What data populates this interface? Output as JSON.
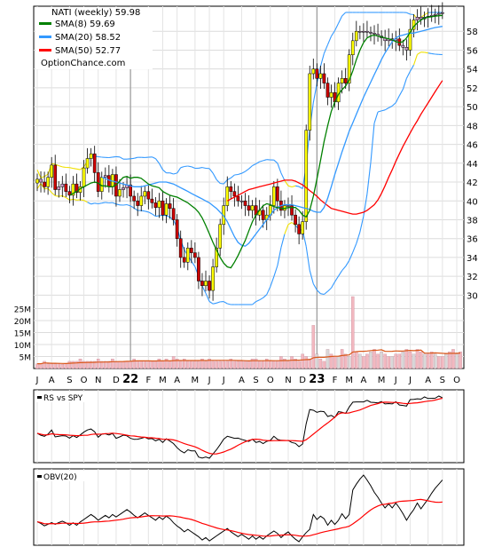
{
  "chart_data": {
    "type": "line",
    "title": "NATI (weekly) 59.98",
    "website": "OptionChance.com",
    "legend_placement": "top-left",
    "colors": {
      "up_candle": "#ffff00",
      "down_candle": "#cc0000",
      "neutral_candle": "#cc99cc",
      "sma8": "#008000",
      "sma20": "#3399ff",
      "sma50": "#ff0000",
      "bollinger_upper_normal": "#3399ff",
      "bollinger_squeeze": "#f0e000",
      "volume_bar": "#f2b8c0",
      "volume_ma": "#d9581a",
      "rs_line": "#000000",
      "rs_ma": "#ff0000",
      "obv_line": "#000000",
      "obv_ma": "#ff0000"
    },
    "legend": [
      {
        "label": "NATI (weekly) 59.98",
        "color": "#000000"
      },
      {
        "label": "SMA(8) 59.69",
        "color": "#008000"
      },
      {
        "label": "SMA(20) 58.52",
        "color": "#3399ff"
      },
      {
        "label": "SMA(50) 52.77",
        "color": "#ff0000"
      }
    ],
    "price_axis": {
      "ticks": [
        "58",
        "56",
        "54",
        "52",
        "50",
        "48",
        "46",
        "44",
        "42",
        "40",
        "38",
        "36",
        "34",
        "32",
        "30"
      ],
      "ylim": [
        29,
        60
      ],
      "grid": true
    },
    "volume_axis": {
      "ticks": [
        "25M",
        "20M",
        "15M",
        "10M",
        "5M"
      ],
      "ylim": [
        0,
        30
      ],
      "grid": true
    },
    "x_axis": {
      "ticks": [
        {
          "label": "J",
          "week": 0
        },
        {
          "label": "A",
          "week": 4
        },
        {
          "label": "S",
          "week": 9
        },
        {
          "label": "O",
          "week": 13
        },
        {
          "label": "N",
          "week": 17
        },
        {
          "label": "D",
          "week": 22
        },
        {
          "label": "22",
          "week": 26,
          "bold": true
        },
        {
          "label": "F",
          "week": 31
        },
        {
          "label": "M",
          "week": 35
        },
        {
          "label": "A",
          "week": 39
        },
        {
          "label": "M",
          "week": 44
        },
        {
          "label": "J",
          "week": 48
        },
        {
          "label": "J",
          "week": 52
        },
        {
          "label": "A",
          "week": 57
        },
        {
          "label": "S",
          "week": 61
        },
        {
          "label": "O",
          "week": 65
        },
        {
          "label": "N",
          "week": 70
        },
        {
          "label": "D",
          "week": 74
        },
        {
          "label": "23",
          "week": 78,
          "bold": true
        },
        {
          "label": "F",
          "week": 83
        },
        {
          "label": "M",
          "week": 87
        },
        {
          "label": "A",
          "week": 91
        },
        {
          "label": "M",
          "week": 96
        },
        {
          "label": "J",
          "week": 100
        },
        {
          "label": "J",
          "week": 104
        },
        {
          "label": "A",
          "week": 109
        },
        {
          "label": "S",
          "week": 113
        },
        {
          "label": "O",
          "week": 117
        }
      ]
    },
    "year_lines": [
      26,
      78
    ],
    "close": [
      42.3,
      42.0,
      41.5,
      42.5,
      43.8,
      41.2,
      41.5,
      41.8,
      41.0,
      40.6,
      41.8,
      40.9,
      41.5,
      43.5,
      44.5,
      45.0,
      43.0,
      41.0,
      42.5,
      42.7,
      41.5,
      42.8,
      40.5,
      41.2,
      41.4,
      41.7,
      40.5,
      40.0,
      39.5,
      40.5,
      41.0,
      40.2,
      39.8,
      39.3,
      40.0,
      38.5,
      39.7,
      39.2,
      38.0,
      36.0,
      34.0,
      33.5,
      35.0,
      34.5,
      34.0,
      31.5,
      31.0,
      31.5,
      30.5,
      33.0,
      35.0,
      37.5,
      39.5,
      41.5,
      41.0,
      40.5,
      40.0,
      40.0,
      39.5,
      39.0,
      39.5,
      38.5,
      39.0,
      38.0,
      38.5,
      39.5,
      41.5,
      40.0,
      39.0,
      39.5,
      39.5,
      38.5,
      37.5,
      36.5,
      37.8,
      47.5,
      53.5,
      54.0,
      53.0,
      53.5,
      52.5,
      51.0,
      51.5,
      50.5,
      52.5,
      53.0,
      52.5,
      55.5,
      57.0,
      58.0,
      58.0,
      58.0,
      57.9,
      57.8,
      57.7,
      57.5,
      57.3,
      57.0,
      57.2,
      57.0,
      57.2,
      56.5,
      56.3,
      56.0,
      58.2,
      59.2,
      59.5,
      59.3,
      59.5,
      59.6,
      59.7,
      59.8,
      59.9,
      59.98
    ],
    "sma8": [
      40.6,
      40.8,
      41.0,
      41.3,
      41.5,
      41.7,
      41.9,
      42.0,
      41.9,
      41.6,
      41.6,
      41.5,
      41.5,
      41.7,
      42.1,
      42.5,
      42.6,
      42.4,
      42.5,
      42.5,
      42.4,
      42.1,
      41.8,
      41.6,
      41.5,
      41.4,
      41.0,
      40.8,
      40.6,
      40.5,
      40.4,
      40.2,
      40.0,
      39.8,
      39.5,
      39.2,
      38.8,
      38.2,
      37.4,
      36.5,
      35.6,
      34.8,
      34.0,
      33.4,
      33.0,
      32.9,
      33.5,
      34.2,
      35.0,
      35.8,
      36.8,
      37.8,
      38.5,
      39.0,
      39.5,
      39.7,
      39.6,
      39.4,
      39.3,
      39.2,
      39.2,
      39.3,
      39.3,
      39.3,
      39.0,
      38.5,
      38.3,
      39.0,
      40.5,
      42.3,
      44.3,
      46.3,
      48.0,
      49.5,
      50.5,
      51.3,
      51.8,
      52.2,
      52.8,
      53.8,
      55.0,
      56.0,
      56.8,
      57.3,
      57.5,
      57.6,
      57.5,
      57.4,
      57.3,
      57.2,
      57.1,
      56.9,
      56.8,
      56.9,
      57.3,
      57.9,
      58.5,
      58.9,
      59.2,
      59.4,
      59.5,
      59.55,
      59.6,
      59.65,
      59.69
    ],
    "sma20": [
      42.5,
      42.4,
      42.2,
      42.1,
      42.0,
      41.9,
      41.8,
      41.7,
      41.6,
      41.5,
      41.5,
      41.5,
      41.6,
      41.7,
      41.8,
      41.9,
      42.0,
      42.0,
      42.0,
      41.9,
      41.8,
      41.6,
      41.4,
      41.2,
      41.0,
      40.8,
      40.6,
      40.4,
      40.2,
      40.0,
      39.8,
      39.5,
      39.2,
      38.8,
      38.4,
      37.8,
      37.0,
      36.2,
      35.6,
      35.3,
      35.2,
      35.5,
      36.0,
      36.5,
      37.0,
      37.5,
      38.0,
      38.5,
      39.0,
      39.3,
      39.5,
      39.6,
      39.6,
      39.6,
      39.5,
      39.4,
      39.3,
      39.2,
      39.1,
      38.9,
      38.8,
      38.8,
      39.3,
      40.3,
      41.5,
      42.8,
      44.0,
      45.2,
      46.3,
      47.4,
      48.3,
      49.2,
      50.1,
      51.0,
      51.8,
      52.6,
      53.4,
      54.2,
      55.0,
      55.7,
      56.3,
      56.9,
      57.3,
      57.5,
      57.6,
      57.7,
      57.8,
      57.8,
      57.9,
      58.0,
      58.1,
      58.2,
      58.3,
      58.4,
      58.45,
      58.52
    ],
    "sma50": [
      40.0,
      40.2,
      40.4,
      40.6,
      40.8,
      41.0,
      41.2,
      41.3,
      41.4,
      41.5,
      41.6,
      41.7,
      41.8,
      41.9,
      42.0,
      42.1,
      42.2,
      42.2,
      42.2,
      42.1,
      41.9,
      41.7,
      41.4,
      41.1,
      40.8,
      40.5,
      40.1,
      39.8,
      39.5,
      39.2,
      39.1,
      39.0,
      38.9,
      38.8,
      38.7,
      38.6,
      38.6,
      38.7,
      38.8,
      39.0,
      39.3,
      39.6,
      40.1,
      40.8,
      41.6,
      42.5,
      43.3,
      44.2,
      45.0,
      45.8,
      46.5,
      47.2,
      47.9,
      48.5,
      49.2,
      49.8,
      50.4,
      51.0,
      51.6,
      52.2,
      52.77
    ],
    "volume_millions": [
      2,
      2,
      3,
      2,
      2,
      2,
      2,
      1.8,
      2,
      3,
      3,
      3,
      4,
      3,
      3,
      3,
      3,
      4,
      3,
      3,
      3,
      4,
      3,
      3,
      3,
      3,
      3,
      4,
      3,
      3,
      3,
      3,
      3,
      3,
      4,
      3,
      4,
      3,
      5,
      4,
      3,
      4,
      3,
      3,
      3,
      3,
      4,
      3,
      4,
      3,
      3,
      3,
      3,
      3,
      4,
      3,
      3,
      3,
      3,
      3,
      4,
      4,
      3,
      3,
      4,
      3,
      3,
      3,
      5,
      4,
      3,
      5,
      4,
      3,
      6,
      5,
      4,
      18,
      6,
      4,
      3,
      8,
      6,
      5,
      5,
      8,
      6,
      5,
      30,
      7,
      6,
      5,
      6,
      7,
      8,
      6,
      7,
      6,
      5,
      5,
      6,
      6,
      7,
      8,
      7,
      6,
      8,
      7,
      6,
      6,
      7,
      6,
      5,
      5,
      6,
      7,
      8,
      6,
      7
    ],
    "rs_vs_spy": {
      "label": "RS vs SPY"
    },
    "obv": {
      "label": "OBV(20)"
    }
  }
}
